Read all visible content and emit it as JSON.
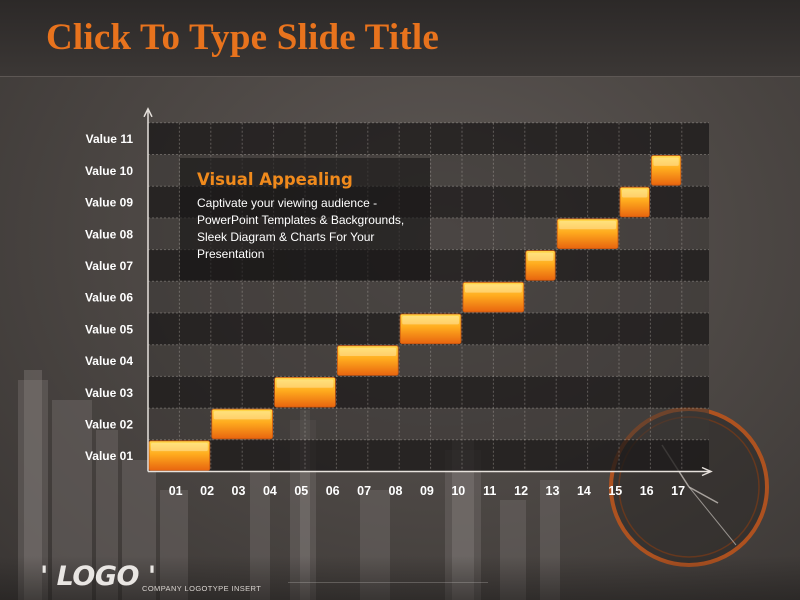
{
  "slide": {
    "title": "Click To Type Slide Title"
  },
  "callout": {
    "heading": "Visual Appealing",
    "body": "Captivate your viewing audience - PowerPoint Templates & Backgrounds, Sleek Diagram & Charts For Your Presentation"
  },
  "footer": {
    "logo": "' LOGO '",
    "company": "COMPANY LOGOTYPE INSERT"
  },
  "colors": {
    "accent": "#e8731d",
    "bar_top": "#ffd23c",
    "bar_bottom": "#e8650f",
    "background": "#4a4543"
  },
  "chart_data": {
    "type": "bar",
    "subtype": "gantt-staircase",
    "y_categories": [
      "Value 01",
      "Value 02",
      "Value 03",
      "Value 04",
      "Value 05",
      "Value 06",
      "Value 07",
      "Value 08",
      "Value 09",
      "Value 10",
      "Value 11"
    ],
    "x_ticks": [
      "01",
      "02",
      "03",
      "04",
      "05",
      "06",
      "07",
      "08",
      "09",
      "10",
      "11",
      "12",
      "13",
      "14",
      "15",
      "16",
      "17"
    ],
    "bars": [
      {
        "category": "Value 01",
        "start": "01",
        "end": "02"
      },
      {
        "category": "Value 02",
        "start": "03",
        "end": "04"
      },
      {
        "category": "Value 03",
        "start": "05",
        "end": "06"
      },
      {
        "category": "Value 04",
        "start": "07",
        "end": "08"
      },
      {
        "category": "Value 05",
        "start": "09",
        "end": "10"
      },
      {
        "category": "Value 06",
        "start": "11",
        "end": "12"
      },
      {
        "category": "Value 07",
        "start": "13",
        "end": "13"
      },
      {
        "category": "Value 08",
        "start": "14",
        "end": "15"
      },
      {
        "category": "Value 09",
        "start": "16",
        "end": "16"
      },
      {
        "category": "Value 10",
        "start": "17",
        "end": "17"
      }
    ],
    "grid": true,
    "legend": "none"
  }
}
